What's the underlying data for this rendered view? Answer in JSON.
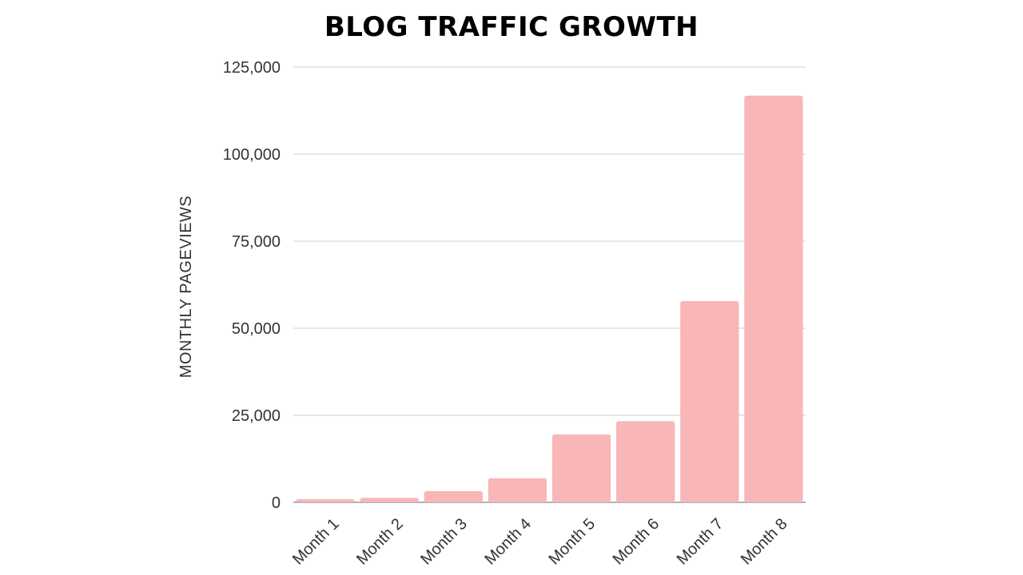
{
  "chart_data": {
    "type": "bar",
    "title": "BLOG TRAFFIC GROWTH",
    "ylabel": "MONTHLY PAGEVIEWS",
    "xlabel": "",
    "categories": [
      "Month 1",
      "Month 2",
      "Month 3",
      "Month 4",
      "Month 5",
      "Month 6",
      "Month 7",
      "Month 8"
    ],
    "values": [
      900,
      1300,
      3200,
      6900,
      19500,
      23300,
      57800,
      116800
    ],
    "ylim": [
      0,
      125000
    ],
    "yticks": [
      0,
      25000,
      50000,
      75000,
      100000,
      125000
    ],
    "ytick_labels": [
      "0",
      "25,000",
      "50,000",
      "75,000",
      "100,000",
      "125,000"
    ],
    "grid": true,
    "legend": "none",
    "bar_color": "#f8b6b7",
    "grid_color": "#cccccc",
    "axis_color": "#999999"
  }
}
